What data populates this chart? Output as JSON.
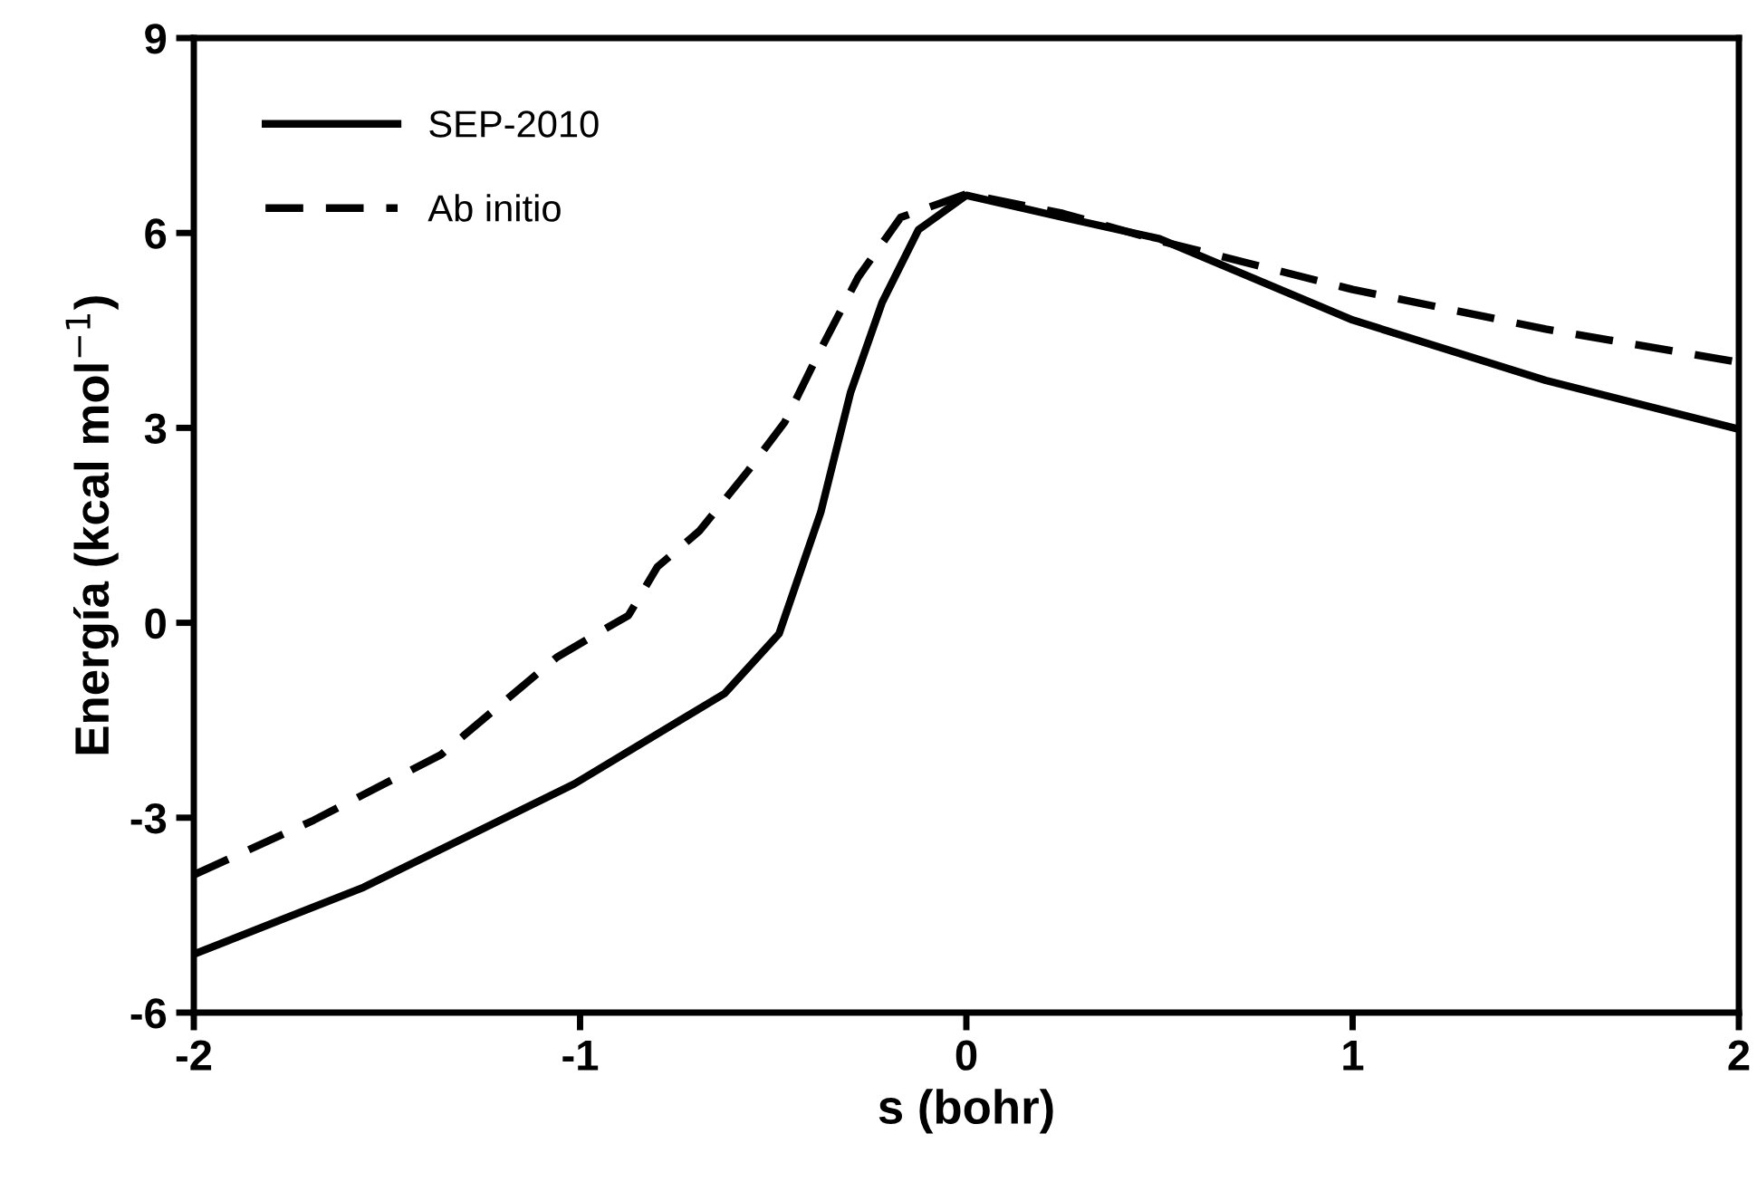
{
  "chart_data": {
    "type": "line",
    "xlabel": "s (bohr)",
    "ylabel": "Energía (kcal mol$^{−1}$)",
    "xlim": [
      -2,
      2
    ],
    "ylim": [
      -6,
      9
    ],
    "xticks": [
      -2,
      -1,
      0,
      1,
      2
    ],
    "yticks": [
      -6,
      -3,
      0,
      3,
      6,
      9
    ],
    "grid": false,
    "legend": "top left",
    "marker": "none",
    "series": [
      {
        "name": "SEP-2010",
        "color": "#000000",
        "line_style": "solid",
        "x": [
          -2,
          -1.56,
          -1.015,
          -0.626,
          -0.485,
          -0.377,
          -0.3,
          -0.218,
          -0.124,
          0,
          0.25,
          0.5,
          1,
          1.5,
          2
        ],
        "values": [
          -5.1,
          -4.07,
          -2.48,
          -1.09,
          -0.17,
          1.7,
          3.54,
          4.93,
          6.05,
          6.58,
          6.24,
          5.91,
          4.66,
          3.73,
          2.98
        ]
      },
      {
        "name": "Ab initio",
        "color": "#000000",
        "line_style": "dashed",
        "x": [
          -2,
          -1.69,
          -1.36,
          -1.06,
          -0.94,
          -0.875,
          -0.8,
          -0.69,
          -0.565,
          -0.47,
          -0.377,
          -0.28,
          -0.17,
          0,
          0.25,
          0.5,
          1,
          1.5,
          2
        ],
        "values": [
          -3.88,
          -3.04,
          -2.03,
          -0.53,
          -0.11,
          0.11,
          0.86,
          1.42,
          2.34,
          3.09,
          4.21,
          5.32,
          6.24,
          6.6,
          6.3,
          5.88,
          5.13,
          4.52,
          4.01
        ]
      }
    ]
  }
}
